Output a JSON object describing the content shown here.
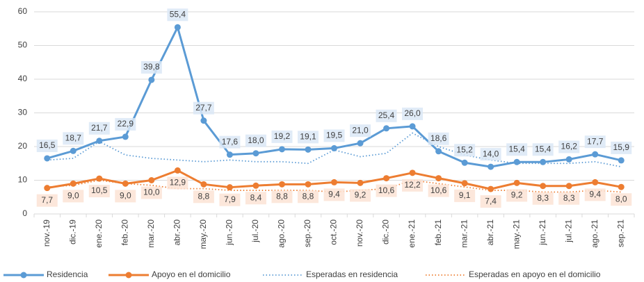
{
  "chart_data": {
    "type": "line",
    "categories": [
      "nov.-19",
      "dic.-19",
      "ene.-20",
      "feb.-20",
      "mar.-20",
      "abr.-20",
      "may.-20",
      "jun.-20",
      "jul.-20",
      "ago.-20",
      "sep.-20",
      "oct.-20",
      "nov.-20",
      "dic.-20",
      "ene.-21",
      "feb.-21",
      "mar.-21",
      "abr.-21",
      "may.-21",
      "jun.-21",
      "jul.-21",
      "ago.-21",
      "sep.-21"
    ],
    "series": [
      {
        "name": "Residencia",
        "color": "#5b9bd5",
        "style": "solid",
        "marker": true,
        "label_side": "above",
        "values": [
          16.5,
          18.7,
          21.7,
          22.9,
          39.8,
          55.4,
          27.7,
          17.6,
          18.0,
          19.2,
          19.1,
          19.5,
          21.0,
          25.4,
          26.0,
          18.6,
          15.2,
          14.0,
          15.4,
          15.4,
          16.2,
          17.7,
          15.9
        ],
        "value_labels": [
          "16,5",
          "18,7",
          "21,7",
          "22,9",
          "39,8",
          "55,4",
          "27,7",
          "17,6",
          "18,0",
          "19,2",
          "19,1",
          "19,5",
          "21,0",
          "25,4",
          "26,0",
          "18,6",
          "15,2",
          "14,0",
          "15,4",
          "15,4",
          "16,2",
          "17,7",
          "15,9"
        ]
      },
      {
        "name": "Apoyo en el domicilio",
        "color": "#ed7d31",
        "style": "solid",
        "marker": true,
        "label_side": "below",
        "values": [
          7.7,
          9.0,
          10.5,
          9.0,
          10.0,
          12.9,
          8.8,
          7.9,
          8.4,
          8.8,
          8.8,
          9.4,
          9.2,
          10.6,
          12.2,
          10.6,
          9.1,
          7.4,
          9.2,
          8.3,
          8.3,
          9.4,
          8.0
        ],
        "value_labels": [
          "7,7",
          "9,0",
          "10,5",
          "9,0",
          "10,0",
          "12,9",
          "8,8",
          "7,9",
          "8,4",
          "8,8",
          "8,8",
          "9,4",
          "9,2",
          "10,6",
          "12,2",
          "10,6",
          "9,1",
          "7,4",
          "9,2",
          "8,3",
          "8,3",
          "9,4",
          "8,0"
        ]
      },
      {
        "name": "Esperadas en residencia",
        "color": "#5b9bd5",
        "style": "dotted",
        "marker": false,
        "values": [
          16,
          16.5,
          21.5,
          17.5,
          16.5,
          16,
          15.5,
          16,
          15.5,
          15.5,
          15,
          19,
          17,
          18,
          24,
          20,
          17.5,
          16,
          15,
          15,
          15,
          15.5,
          14
        ]
      },
      {
        "name": "Esperadas en apoyo en el domicilio",
        "color": "#ed7d31",
        "style": "dotted",
        "marker": false,
        "values": [
          8,
          8.5,
          10,
          9,
          8.5,
          7.5,
          7.5,
          7,
          7,
          7,
          7,
          6.5,
          7,
          7.5,
          10,
          9,
          8,
          7,
          7,
          6.5,
          6.5,
          7,
          6.5
        ]
      }
    ],
    "ylim": [
      0,
      60
    ],
    "yticks": [
      0,
      10,
      20,
      30,
      40,
      50,
      60
    ],
    "grid": true,
    "legend": "bottom"
  }
}
